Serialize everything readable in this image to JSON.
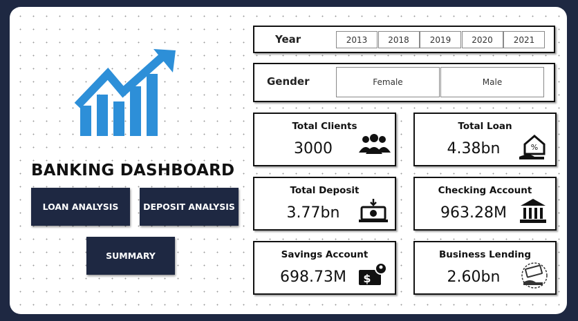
{
  "header": {
    "title": "BANKING DASHBOARD"
  },
  "nav": [
    "LOAN ANALYSIS",
    "DEPOSIT ANALYSIS",
    "SUMMARY"
  ],
  "filters": [
    {
      "label": "Year",
      "options": [
        "2013",
        "2018",
        "2019",
        "2020",
        "2021"
      ]
    },
    {
      "label": "Gender",
      "options": [
        "Female",
        "Male"
      ]
    }
  ],
  "cards": [
    {
      "label": "Total Clients",
      "value": "3000"
    },
    {
      "label": "Total Loan",
      "value": "4.38bn"
    },
    {
      "label": "Total Deposit",
      "value": "3.77bn"
    },
    {
      "label": "Checking Account",
      "value": "963.28M"
    },
    {
      "label": "Savings Account",
      "value": "698.73M"
    },
    {
      "label": "Business Lending",
      "value": "2.60bn"
    }
  ]
}
